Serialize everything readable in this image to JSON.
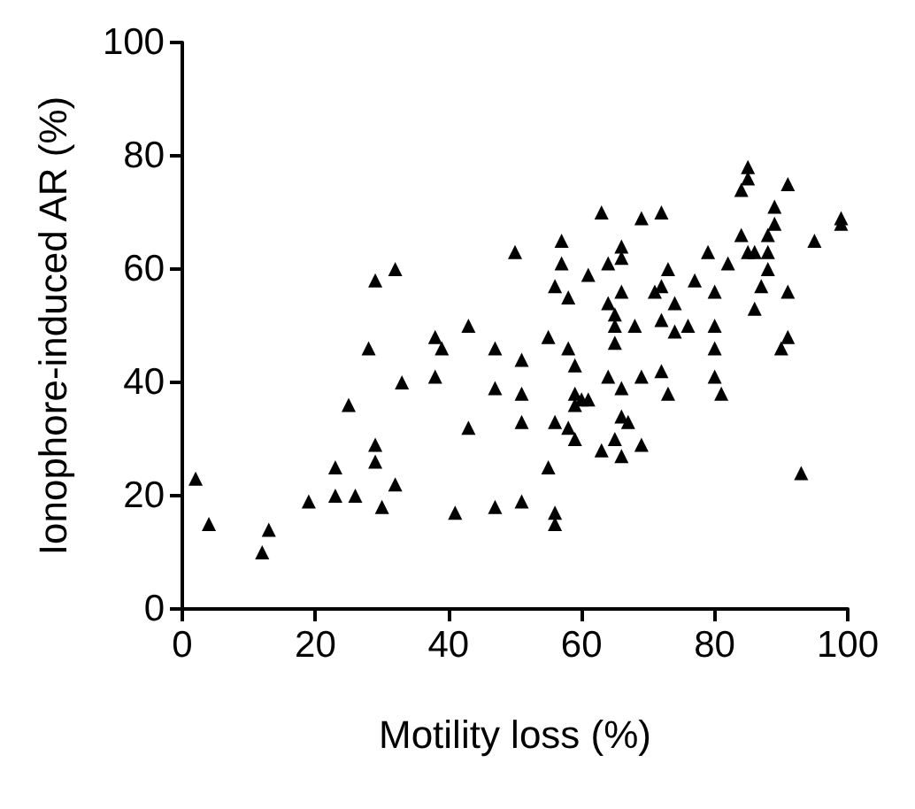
{
  "chart_data": {
    "type": "scatter",
    "xlabel": "Motility loss (%)",
    "ylabel": "Ionophore-induced AR (%)",
    "xlim": [
      0,
      100
    ],
    "xticks": [
      0,
      20,
      40,
      60,
      80,
      100
    ],
    "ylim": [
      0,
      100
    ],
    "yticks": [
      0,
      20,
      40,
      60,
      80,
      100
    ],
    "grid": false,
    "marker": "triangle",
    "series": [
      {
        "color": "#000000",
        "x": [
          2,
          4,
          12,
          13,
          19,
          23,
          23,
          26,
          25,
          29,
          29,
          28,
          29,
          32,
          30,
          33,
          32,
          63,
          50,
          57,
          57,
          64,
          61,
          56,
          58,
          64,
          65,
          65,
          65,
          43,
          38,
          39,
          47,
          55,
          58,
          51,
          59,
          38,
          47,
          51,
          64,
          59,
          59,
          60,
          61,
          43,
          51,
          56,
          58,
          59,
          65,
          63,
          55,
          41,
          47,
          51,
          56,
          56,
          85,
          85,
          84,
          91,
          89,
          89,
          88,
          84,
          99,
          99,
          95,
          69,
          72,
          66,
          66,
          73,
          79,
          82,
          85,
          86,
          88,
          88,
          77,
          71,
          72,
          66,
          74,
          80,
          87,
          91,
          86,
          68,
          72,
          74,
          76,
          80,
          80,
          91,
          90,
          66,
          69,
          72,
          80,
          73,
          81,
          66,
          67,
          66,
          69,
          93
        ],
        "values": [
          23,
          15,
          10,
          14,
          19,
          25,
          20,
          20,
          36,
          29,
          26,
          46,
          58,
          22,
          18,
          40,
          60,
          70,
          63,
          65,
          61,
          61,
          59,
          57,
          55,
          54,
          52,
          50,
          47,
          50,
          48,
          46,
          46,
          48,
          46,
          44,
          43,
          41,
          39,
          38,
          41,
          38,
          36,
          37,
          37,
          32,
          33,
          33,
          32,
          30,
          30,
          28,
          25,
          17,
          18,
          19,
          17,
          15,
          78,
          76,
          74,
          75,
          71,
          68,
          66,
          66,
          69,
          68,
          65,
          69,
          70,
          64,
          62,
          60,
          63,
          61,
          63,
          63,
          63,
          60,
          58,
          56,
          57,
          56,
          54,
          56,
          57,
          56,
          53,
          50,
          51,
          49,
          50,
          50,
          46,
          48,
          46,
          39,
          41,
          42,
          41,
          38,
          38,
          34,
          33,
          27,
          29,
          24
        ]
      }
    ]
  }
}
